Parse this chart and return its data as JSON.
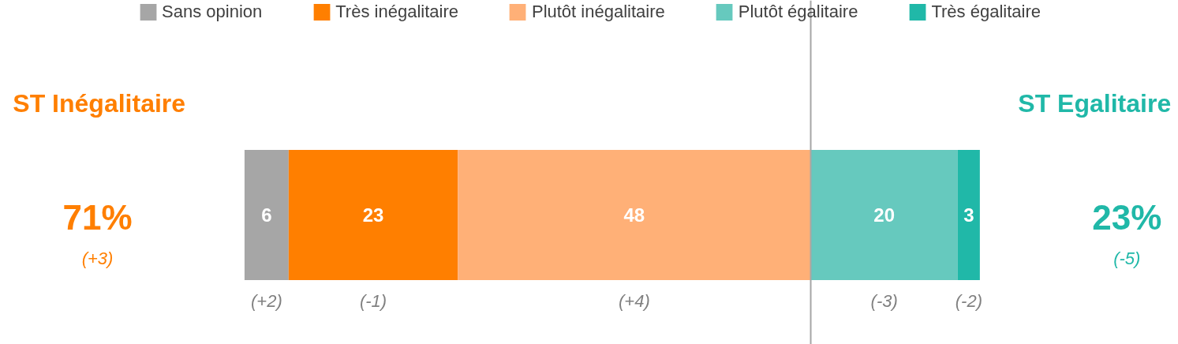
{
  "chart_data": {
    "type": "bar",
    "orientation": "horizontal",
    "stacked": true,
    "categories": [
      null
    ],
    "series": [
      {
        "name": "Sans opinion",
        "color": "#a6a6a6",
        "values": [
          6
        ]
      },
      {
        "name": "Très inégalitaire",
        "color": "#ff7f00",
        "values": [
          23
        ]
      },
      {
        "name": "Plutôt inégalitaire",
        "color": "#ffb077",
        "values": [
          48
        ]
      },
      {
        "name": "Plutôt égalitaire",
        "color": "#66c9be",
        "values": [
          20
        ]
      },
      {
        "name": "Très égalitaire",
        "color": "#20b8a8",
        "values": [
          3
        ]
      }
    ],
    "data_labels": true,
    "legend": "top",
    "ref_lines": [
      {
        "axis": "x",
        "value": 77,
        "color": "#a6a6a6"
      }
    ],
    "annotations": [
      "ST Inégalitaire",
      "71%",
      "(+3)",
      "ST Egalitaire",
      "23%",
      "(-5)",
      "(+2)",
      "(-1)",
      "(+4)",
      "(-3)",
      "(-2)"
    ]
  }
}
